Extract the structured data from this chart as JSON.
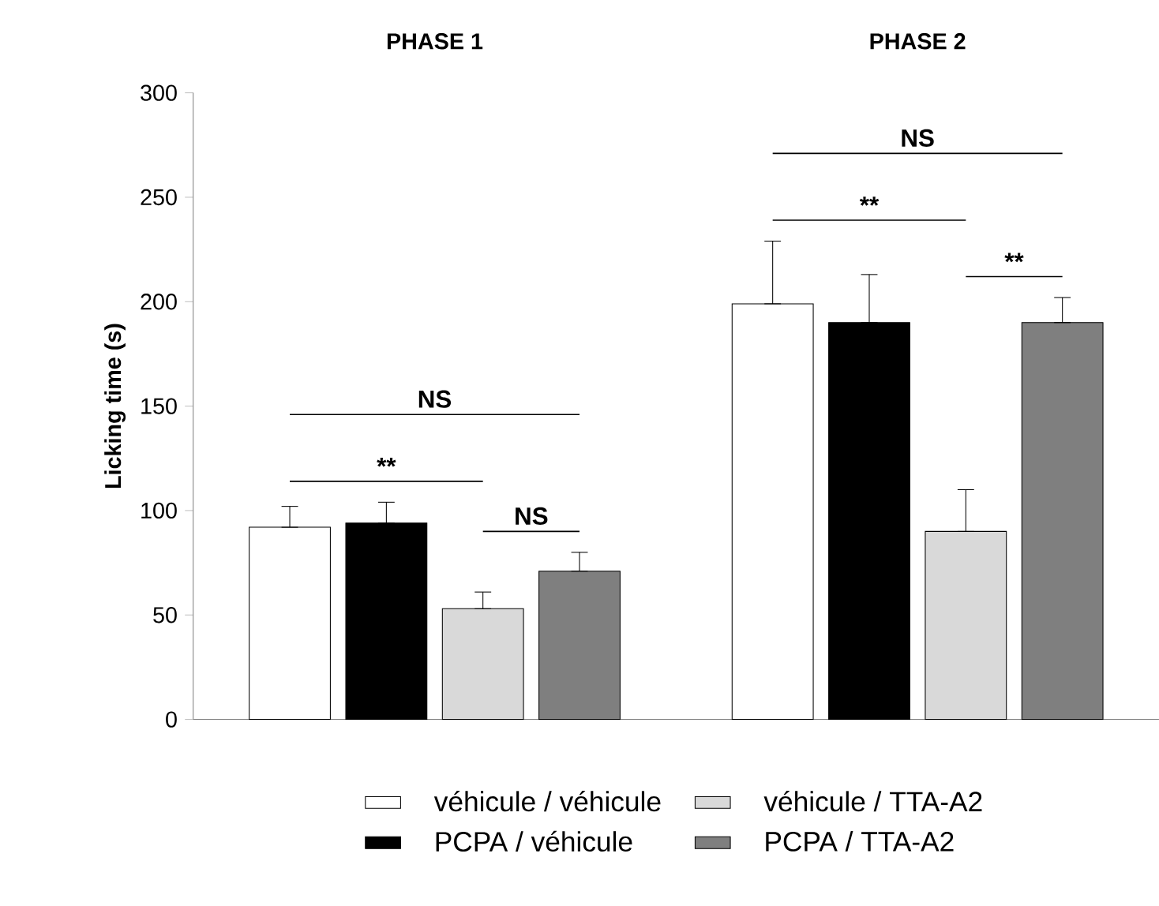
{
  "chart_data": {
    "type": "bar",
    "ylabel": "Licking time (s)",
    "categories": [
      "PHASE 1",
      "PHASE 2"
    ],
    "ylim": [
      0,
      300
    ],
    "yticks": [
      0,
      50,
      100,
      150,
      200,
      250,
      300
    ],
    "legend": "bottom",
    "series": [
      {
        "name": "véhicule / véhicule",
        "color": "#ffffff",
        "values": [
          92,
          199
        ],
        "errors": [
          [
            92,
            102
          ],
          [
            199,
            229
          ]
        ]
      },
      {
        "name": "PCPA / véhicule",
        "color": "#000000",
        "values": [
          94,
          190
        ],
        "errors": [
          [
            94,
            104
          ],
          [
            190,
            213
          ]
        ]
      },
      {
        "name": "véhicule / TTA-A2",
        "color": "#d9d9d9",
        "values": [
          53,
          90
        ],
        "errors": [
          [
            53,
            61
          ],
          [
            90,
            110
          ]
        ]
      },
      {
        "name": "PCPA / TTA-A2",
        "color": "#7f7f7f",
        "values": [
          71,
          190
        ],
        "errors": [
          [
            71,
            80
          ],
          [
            190,
            202
          ]
        ]
      }
    ],
    "annotations": [
      "NS",
      "**",
      "NS",
      "NS",
      "**",
      "**"
    ]
  }
}
